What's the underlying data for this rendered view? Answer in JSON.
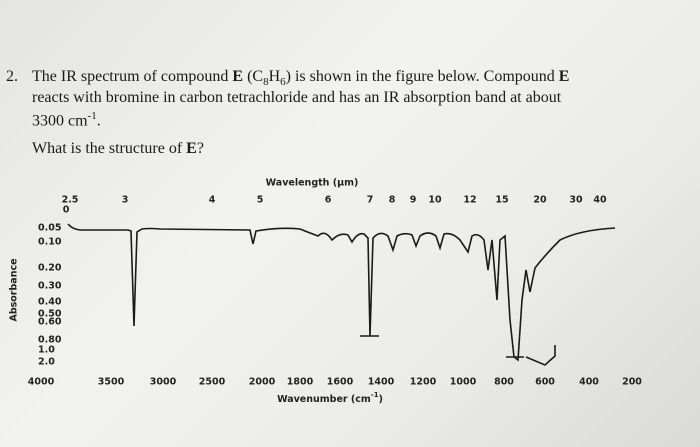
{
  "question": {
    "number": "2.",
    "line1": {
      "a": "The IR spectrum of compound ",
      "b": "E",
      "c": " (C",
      "d": "8",
      "e": "H",
      "f": "6",
      "g": ") is shown in the figure below. Compound ",
      "h": "E"
    },
    "line2": "reacts with bromine in carbon tetrachloride and has an IR absorption band at about",
    "line3": {
      "a": "3300 cm",
      "b": "-1",
      "c": "."
    },
    "prompt": {
      "a": "What is the structure of ",
      "b": "E",
      "c": "?"
    }
  },
  "figure": {
    "top_axis_title": "Wavelength (µm)",
    "top_ticks": [
      "2.5",
      "3",
      "4",
      "5",
      "6",
      "7",
      "8",
      "9",
      "10",
      "12",
      "15",
      "20",
      "30",
      "40"
    ],
    "bottom_axis_title": {
      "a": "Wavenumber (cm",
      "b": "-1",
      "c": ")"
    },
    "bottom_ticks": [
      "4000",
      "3500",
      "3000",
      "2500",
      "2000",
      "1800",
      "1600",
      "1400",
      "1200",
      "1000",
      "800",
      "600",
      "400",
      "200"
    ],
    "y_axis_title": "Absorbance",
    "y_ticks": [
      "0",
      "0.05",
      "0.10",
      "0.20",
      "0.30",
      "0.40",
      "0.50",
      "0.60",
      "0.80",
      "1.0",
      "2.0"
    ]
  }
}
